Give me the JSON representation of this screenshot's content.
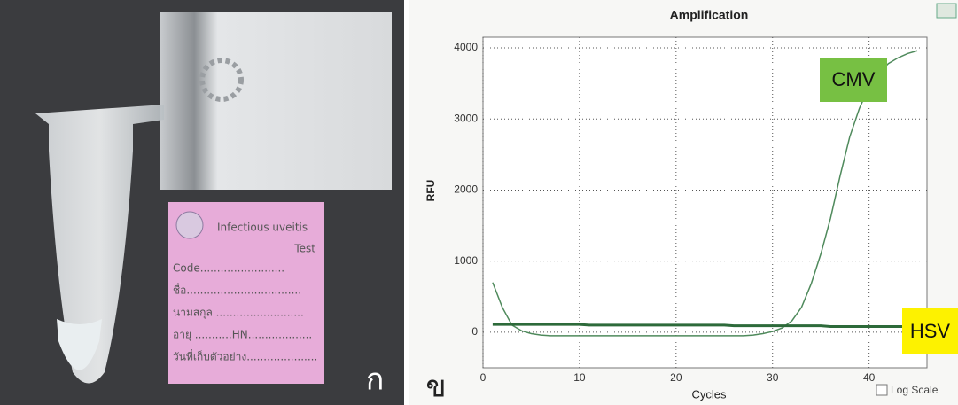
{
  "chart_data": {
    "type": "line",
    "title": "Amplification",
    "xlabel": "Cycles",
    "ylabel": "RFU",
    "log_scale_option": "Log Scale",
    "grid": true,
    "x": [
      1,
      2,
      3,
      4,
      5,
      6,
      7,
      8,
      9,
      10,
      11,
      12,
      13,
      14,
      15,
      16,
      17,
      18,
      19,
      20,
      21,
      22,
      23,
      24,
      25,
      26,
      27,
      28,
      29,
      30,
      31,
      32,
      33,
      34,
      35,
      36,
      37,
      38,
      39,
      40,
      41,
      42,
      43,
      44,
      45
    ],
    "series": [
      {
        "name": "CMV",
        "color": "#4f8a5c",
        "values": [
          700,
          350,
          100,
          20,
          -20,
          -40,
          -50,
          -50,
          -50,
          -50,
          -50,
          -50,
          -50,
          -50,
          -50,
          -50,
          -50,
          -50,
          -50,
          -50,
          -50,
          -50,
          -50,
          -50,
          -50,
          -50,
          -50,
          -40,
          -20,
          10,
          60,
          160,
          350,
          680,
          1100,
          1600,
          2200,
          2750,
          3150,
          3450,
          3650,
          3780,
          3860,
          3920,
          3960
        ]
      },
      {
        "name": "HSV",
        "color": "#2d6a3a",
        "values": [
          110,
          110,
          110,
          110,
          110,
          110,
          110,
          110,
          110,
          110,
          100,
          100,
          100,
          100,
          100,
          100,
          100,
          100,
          100,
          100,
          100,
          100,
          100,
          100,
          100,
          90,
          90,
          90,
          90,
          90,
          90,
          90,
          90,
          90,
          90,
          80,
          80,
          80,
          80,
          80,
          80,
          80,
          80,
          80,
          80
        ]
      }
    ],
    "xlim": [
      0,
      46
    ],
    "xticks": [
      0,
      10,
      20,
      30,
      40
    ],
    "ylim": [
      -500,
      4150
    ],
    "yticks": [
      0,
      1000,
      2000,
      3000,
      4000
    ]
  },
  "photo": {
    "label_title": "Infectious uveitis",
    "label_subtitle": "Test",
    "label_lines": [
      "Code.........................",
      "ชื่อ..................................",
      "นามสกุล ..........................",
      "อายุ ...........HN...................",
      "วันที่เก็บตัวอย่าง....................."
    ]
  },
  "panel_labels": [
    "ก",
    "ข"
  ]
}
